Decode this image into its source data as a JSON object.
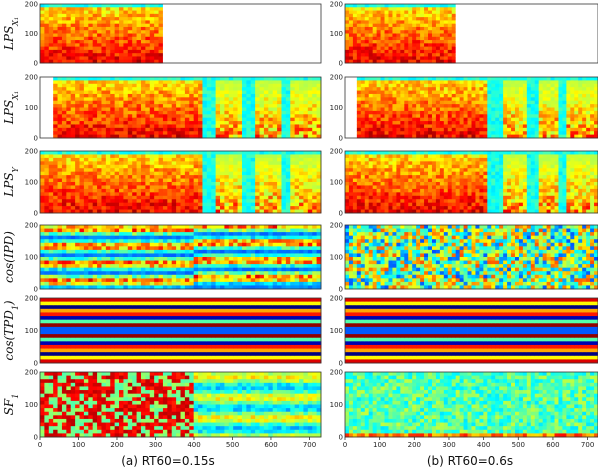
{
  "figure": {
    "captions": [
      {
        "id": "a",
        "text": "(a) RT60=0.15s"
      },
      {
        "id": "b",
        "text": "(b) RT60=0.6s"
      }
    ],
    "rows": [
      {
        "id": "lps-x1",
        "label_main": "LPS",
        "label_sub": "X₁",
        "kind": "spectrogram",
        "active_until": [
          0.44,
          0.44
        ],
        "leading_blank": [
          0.0,
          0.0
        ]
      },
      {
        "id": "lps-x1b",
        "label_main": "LPS",
        "label_sub": "X₁",
        "kind": "spectrogram-gaps",
        "active_until": [
          1.0,
          1.0
        ],
        "leading_blank": [
          0.04,
          0.04
        ]
      },
      {
        "id": "lps-y",
        "label_main": "LPS",
        "label_sub": "Y",
        "kind": "spectrogram-gaps",
        "active_until": [
          1.0,
          1.0
        ],
        "leading_blank": [
          0.0,
          0.0
        ]
      },
      {
        "id": "cos-ipd",
        "label_main": "cos(IPD)",
        "label_sub": "",
        "kind": "noise-stripes",
        "active_until": [
          1.0,
          1.0
        ],
        "leading_blank": [
          0.0,
          0.0
        ]
      },
      {
        "id": "cos-tpd",
        "label_main": "cos(TPD",
        "label_sub": "1",
        "label_tail": ")",
        "kind": "bands",
        "active_until": [
          1.0,
          1.0
        ],
        "leading_blank": [
          0.0,
          0.0
        ]
      },
      {
        "id": "sf1",
        "label_main": "SF",
        "label_sub": "1",
        "kind": "sf",
        "active_until": [
          1.0,
          1.0
        ],
        "leading_blank": [
          0.0,
          0.0
        ]
      }
    ],
    "y_ticks": [
      "0",
      "100",
      "200"
    ],
    "x_ticks": [
      "0",
      "100",
      "200",
      "300",
      "400",
      "500",
      "600",
      "700"
    ],
    "colormap": "jet"
  }
}
